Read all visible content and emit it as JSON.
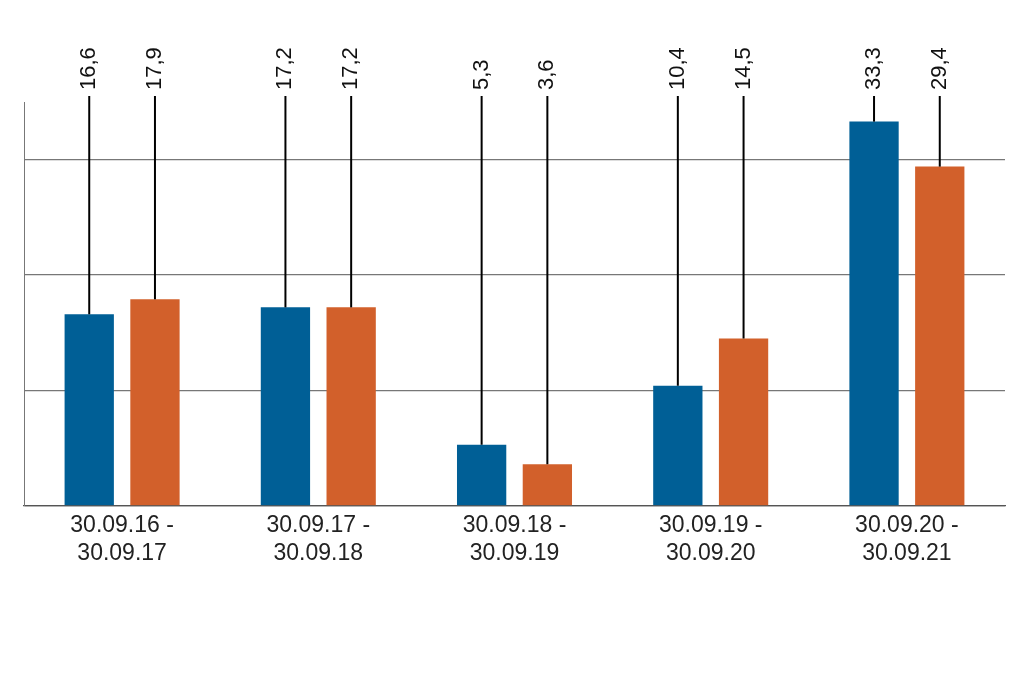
{
  "chart_data": {
    "type": "bar",
    "categories": [
      [
        "30.09.16 -",
        "30.09.17"
      ],
      [
        "30.09.17 -",
        "30.09.18"
      ],
      [
        "30.09.18 -",
        "30.09.19"
      ],
      [
        "30.09.19 -",
        "30.09.20"
      ],
      [
        "30.09.20 -",
        "30.09.21"
      ]
    ],
    "series": [
      {
        "color": "#005f96",
        "values": [
          16.6,
          17.2,
          5.3,
          10.4,
          33.3
        ],
        "value_labels": [
          "16,6",
          "17,2",
          "5,3",
          "10,4",
          "33,3"
        ]
      },
      {
        "color": "#d2602b",
        "values": [
          17.9,
          17.2,
          3.6,
          14.5,
          29.4
        ],
        "value_labels": [
          "17,9",
          "17,2",
          "3,6",
          "14,5",
          "29,4"
        ]
      }
    ],
    "ylim": [
      0,
      35
    ],
    "yticks": [
      0,
      10,
      20,
      30
    ],
    "grid": true,
    "data_labels": true,
    "tick_labels": "x"
  }
}
